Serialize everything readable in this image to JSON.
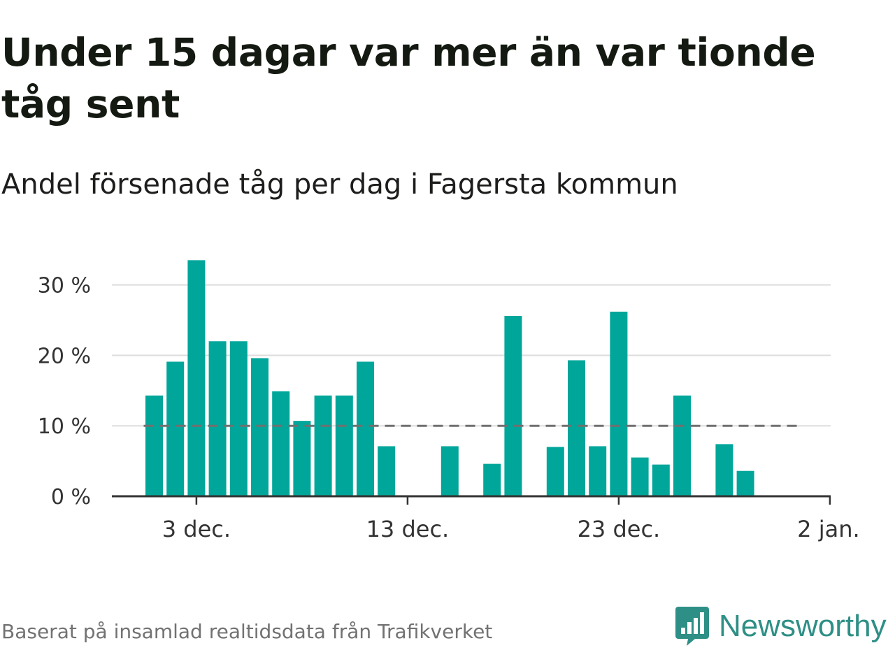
{
  "title": "Under 15 dagar var mer än var tionde tåg sent",
  "subtitle": "Andel försenade tåg per dag i Fagersta kommun",
  "source": "Baserat på insamlad realtidsdata från Trafikverket",
  "brand": {
    "name": "Newsworthy",
    "logo_icon": "bar-chart-speech-bubble-icon",
    "color": "#2e8f86"
  },
  "chart_data": {
    "type": "bar",
    "unit": "%",
    "days": [
      "1 dec.",
      "2 dec.",
      "3 dec.",
      "4 dec.",
      "5 dec.",
      "6 dec.",
      "7 dec.",
      "8 dec.",
      "9 dec.",
      "10 dec.",
      "11 dec.",
      "12 dec.",
      "13 dec.",
      "14 dec.",
      "15 dec.",
      "16 dec.",
      "17 dec.",
      "18 dec.",
      "19 dec.",
      "20 dec.",
      "21 dec.",
      "22 dec.",
      "23 dec.",
      "24 dec.",
      "25 dec.",
      "26 dec.",
      "27 dec.",
      "28 dec.",
      "29 dec.",
      "30 dec.",
      "31 dec."
    ],
    "values": [
      14.3,
      19.1,
      33.5,
      22.0,
      22.0,
      19.6,
      14.9,
      10.7,
      14.3,
      14.3,
      19.1,
      7.1,
      0,
      0,
      7.1,
      0,
      4.6,
      25.6,
      0,
      7.0,
      19.3,
      7.1,
      26.2,
      5.5,
      4.5,
      14.3,
      0,
      7.4,
      3.6,
      0,
      0
    ],
    "x_ticks": [
      "3 dec.",
      "13 dec.",
      "23 dec.",
      "2 jan."
    ],
    "x_range": [
      "1 dec.",
      "2 jan."
    ],
    "y_ticks": [
      "0 %",
      "10 %",
      "20 %",
      "30 %"
    ],
    "ylim": [
      0,
      35
    ],
    "reference_line": 10,
    "bar_color": "#00a69a",
    "reference_line_color": "#707070",
    "grid": true
  }
}
